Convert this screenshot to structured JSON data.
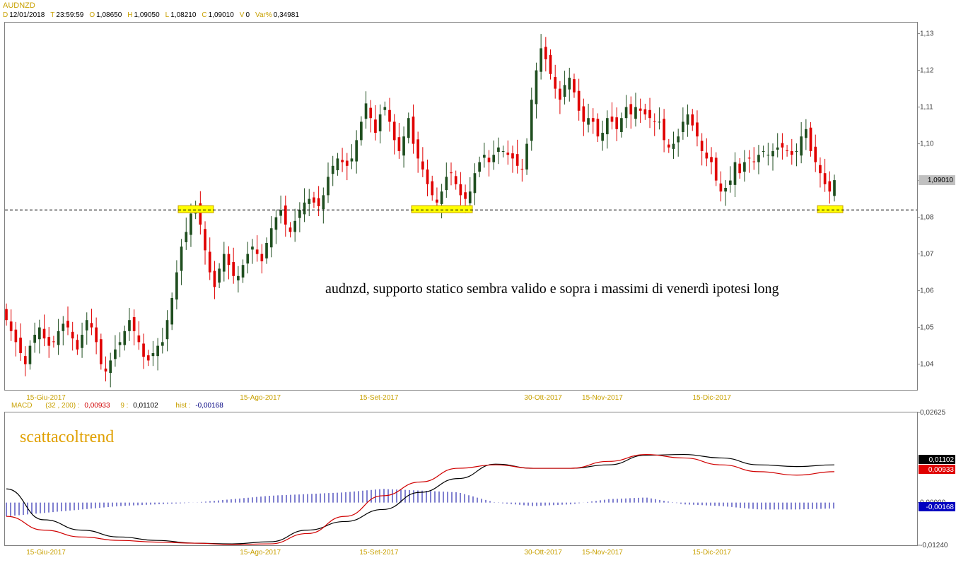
{
  "header": {
    "symbol": "AUDNZD",
    "fields": [
      {
        "k": "D",
        "v": "12/01/2018"
      },
      {
        "k": "T",
        "v": "23:59:59"
      },
      {
        "k": "O",
        "v": "1,08650"
      },
      {
        "k": "H",
        "v": "1,09050"
      },
      {
        "k": "L",
        "v": "1,08210"
      },
      {
        "k": "C",
        "v": "1,09010"
      },
      {
        "k": "V",
        "v": "0"
      },
      {
        "k": "Var%",
        "v": "0,34981"
      }
    ]
  },
  "annotation": "audnzd, supporto statico sembra valido e sopra i massimi di venerdì ipotesi long",
  "brand": "scattacoltrend",
  "macd_header": {
    "name": "MACD",
    "params": "(32 , 200) :",
    "macd_value": "0,00933",
    "signal_label": "9 :",
    "signal_value": "0,01102",
    "hist_label": "hist :",
    "hist_value": "-0,00168"
  },
  "colors": {
    "up": "#1f4e1f",
    "down": "#e00000",
    "macd_line": "#d00000",
    "signal_line": "#000000",
    "hist": "#0000a0",
    "label": "#c8a000",
    "highlight": "#ffff00"
  },
  "chart_data": [
    {
      "type": "candlestick",
      "title": "AUDNZD",
      "ylim": [
        1.033,
        1.133
      ],
      "y_ticks": [
        "1,04",
        "1,05",
        "1,06",
        "1,07",
        "1,08",
        "1,09",
        "1,10",
        "1,11",
        "1,12",
        "1,13"
      ],
      "x_ticks": [
        "15-Giu-2017",
        "15-Ago-2017",
        "15-Set-2017",
        "30-Ott-2017",
        "15-Nov-2017",
        "15-Dic-2017"
      ],
      "last_price": "1,09010",
      "support_level": 1.082,
      "closes": [
        1.052,
        1.049,
        1.046,
        1.043,
        1.04,
        1.045,
        1.048,
        1.05,
        1.047,
        1.045,
        1.046,
        1.049,
        1.051,
        1.05,
        1.047,
        1.044,
        1.048,
        1.052,
        1.05,
        1.046,
        1.04,
        1.038,
        1.041,
        1.044,
        1.046,
        1.049,
        1.052,
        1.049,
        1.046,
        1.042,
        1.041,
        1.043,
        1.045,
        1.046,
        1.052,
        1.058,
        1.065,
        1.072,
        1.076,
        1.081,
        1.083,
        1.078,
        1.071,
        1.065,
        1.061,
        1.066,
        1.07,
        1.067,
        1.064,
        1.064,
        1.067,
        1.07,
        1.072,
        1.07,
        1.068,
        1.073,
        1.077,
        1.08,
        1.082,
        1.078,
        1.076,
        1.079,
        1.082,
        1.084,
        1.085,
        1.084,
        1.083,
        1.086,
        1.091,
        1.094,
        1.096,
        1.095,
        1.094,
        1.096,
        1.101,
        1.106,
        1.111,
        1.107,
        1.103,
        1.108,
        1.11,
        1.106,
        1.101,
        1.098,
        1.102,
        1.107,
        1.1,
        1.096,
        1.093,
        1.089,
        1.086,
        1.084,
        1.087,
        1.091,
        1.092,
        1.089,
        1.086,
        1.085,
        1.087,
        1.092,
        1.095,
        1.097,
        1.095,
        1.097,
        1.099,
        1.098,
        1.097,
        1.096,
        1.094,
        1.093,
        1.1,
        1.112,
        1.12,
        1.126,
        1.123,
        1.119,
        1.115,
        1.112,
        1.116,
        1.118,
        1.114,
        1.109,
        1.106,
        1.107,
        1.106,
        1.102,
        1.103,
        1.107,
        1.106,
        1.104,
        1.107,
        1.11,
        1.108,
        1.11,
        1.109,
        1.108,
        1.107,
        1.106,
        1.106,
        1.101,
        1.099,
        1.1,
        1.102,
        1.106,
        1.108,
        1.105,
        1.102,
        1.098,
        1.096,
        1.095,
        1.09,
        1.087,
        1.088,
        1.09,
        1.095,
        1.092,
        1.095,
        1.096,
        1.095,
        1.097,
        1.098,
        1.097,
        1.098,
        1.099,
        1.099,
        1.098,
        1.097,
        1.098,
        1.102,
        1.104,
        1.098,
        1.095,
        1.092,
        1.089,
        1.087,
        1.0901
      ]
    },
    {
      "type": "line",
      "title": "MACD",
      "ylim": [
        -0.0124,
        0.02625
      ],
      "y_ticks": [
        "0,02625",
        "0,00000",
        "-0,01240"
      ],
      "x_ticks": [
        "15-Giu-2017",
        "15-Ago-2017",
        "15-Set-2017",
        "30-Ott-2017",
        "15-Nov-2017",
        "15-Dic-2017"
      ],
      "series": [
        {
          "name": "MACD",
          "values": [
            -0.004,
            -0.008,
            -0.01,
            -0.011,
            -0.0115,
            -0.0118,
            -0.0122,
            -0.012,
            -0.009,
            -0.004,
            0.002,
            0.006,
            0.01,
            0.011,
            0.01,
            0.01,
            0.012,
            0.014,
            0.013,
            0.011,
            0.009,
            0.008,
            0.009
          ]
        },
        {
          "name": "Signal",
          "values": [
            0.004,
            -0.005,
            -0.008,
            -0.01,
            -0.011,
            -0.0118,
            -0.012,
            -0.0114,
            -0.008,
            -0.0055,
            -0.002,
            0.003,
            0.007,
            0.0112,
            0.01,
            0.01,
            0.011,
            0.0138,
            0.014,
            0.013,
            0.011,
            0.0105,
            0.011
          ]
        },
        {
          "name": "Hist",
          "values": [
            -0.004,
            -0.003,
            -0.002,
            -0.001,
            -0.0005,
            0.0,
            0.001,
            0.002,
            0.0025,
            0.003,
            0.004,
            0.0035,
            0.003,
            0.0,
            -0.001,
            -0.0005,
            0.001,
            0.0015,
            -0.0005,
            -0.001,
            -0.002,
            -0.002,
            -0.0017
          ]
        }
      ],
      "badges": [
        "0,01102",
        "0,00933",
        "-0,00168"
      ]
    }
  ]
}
